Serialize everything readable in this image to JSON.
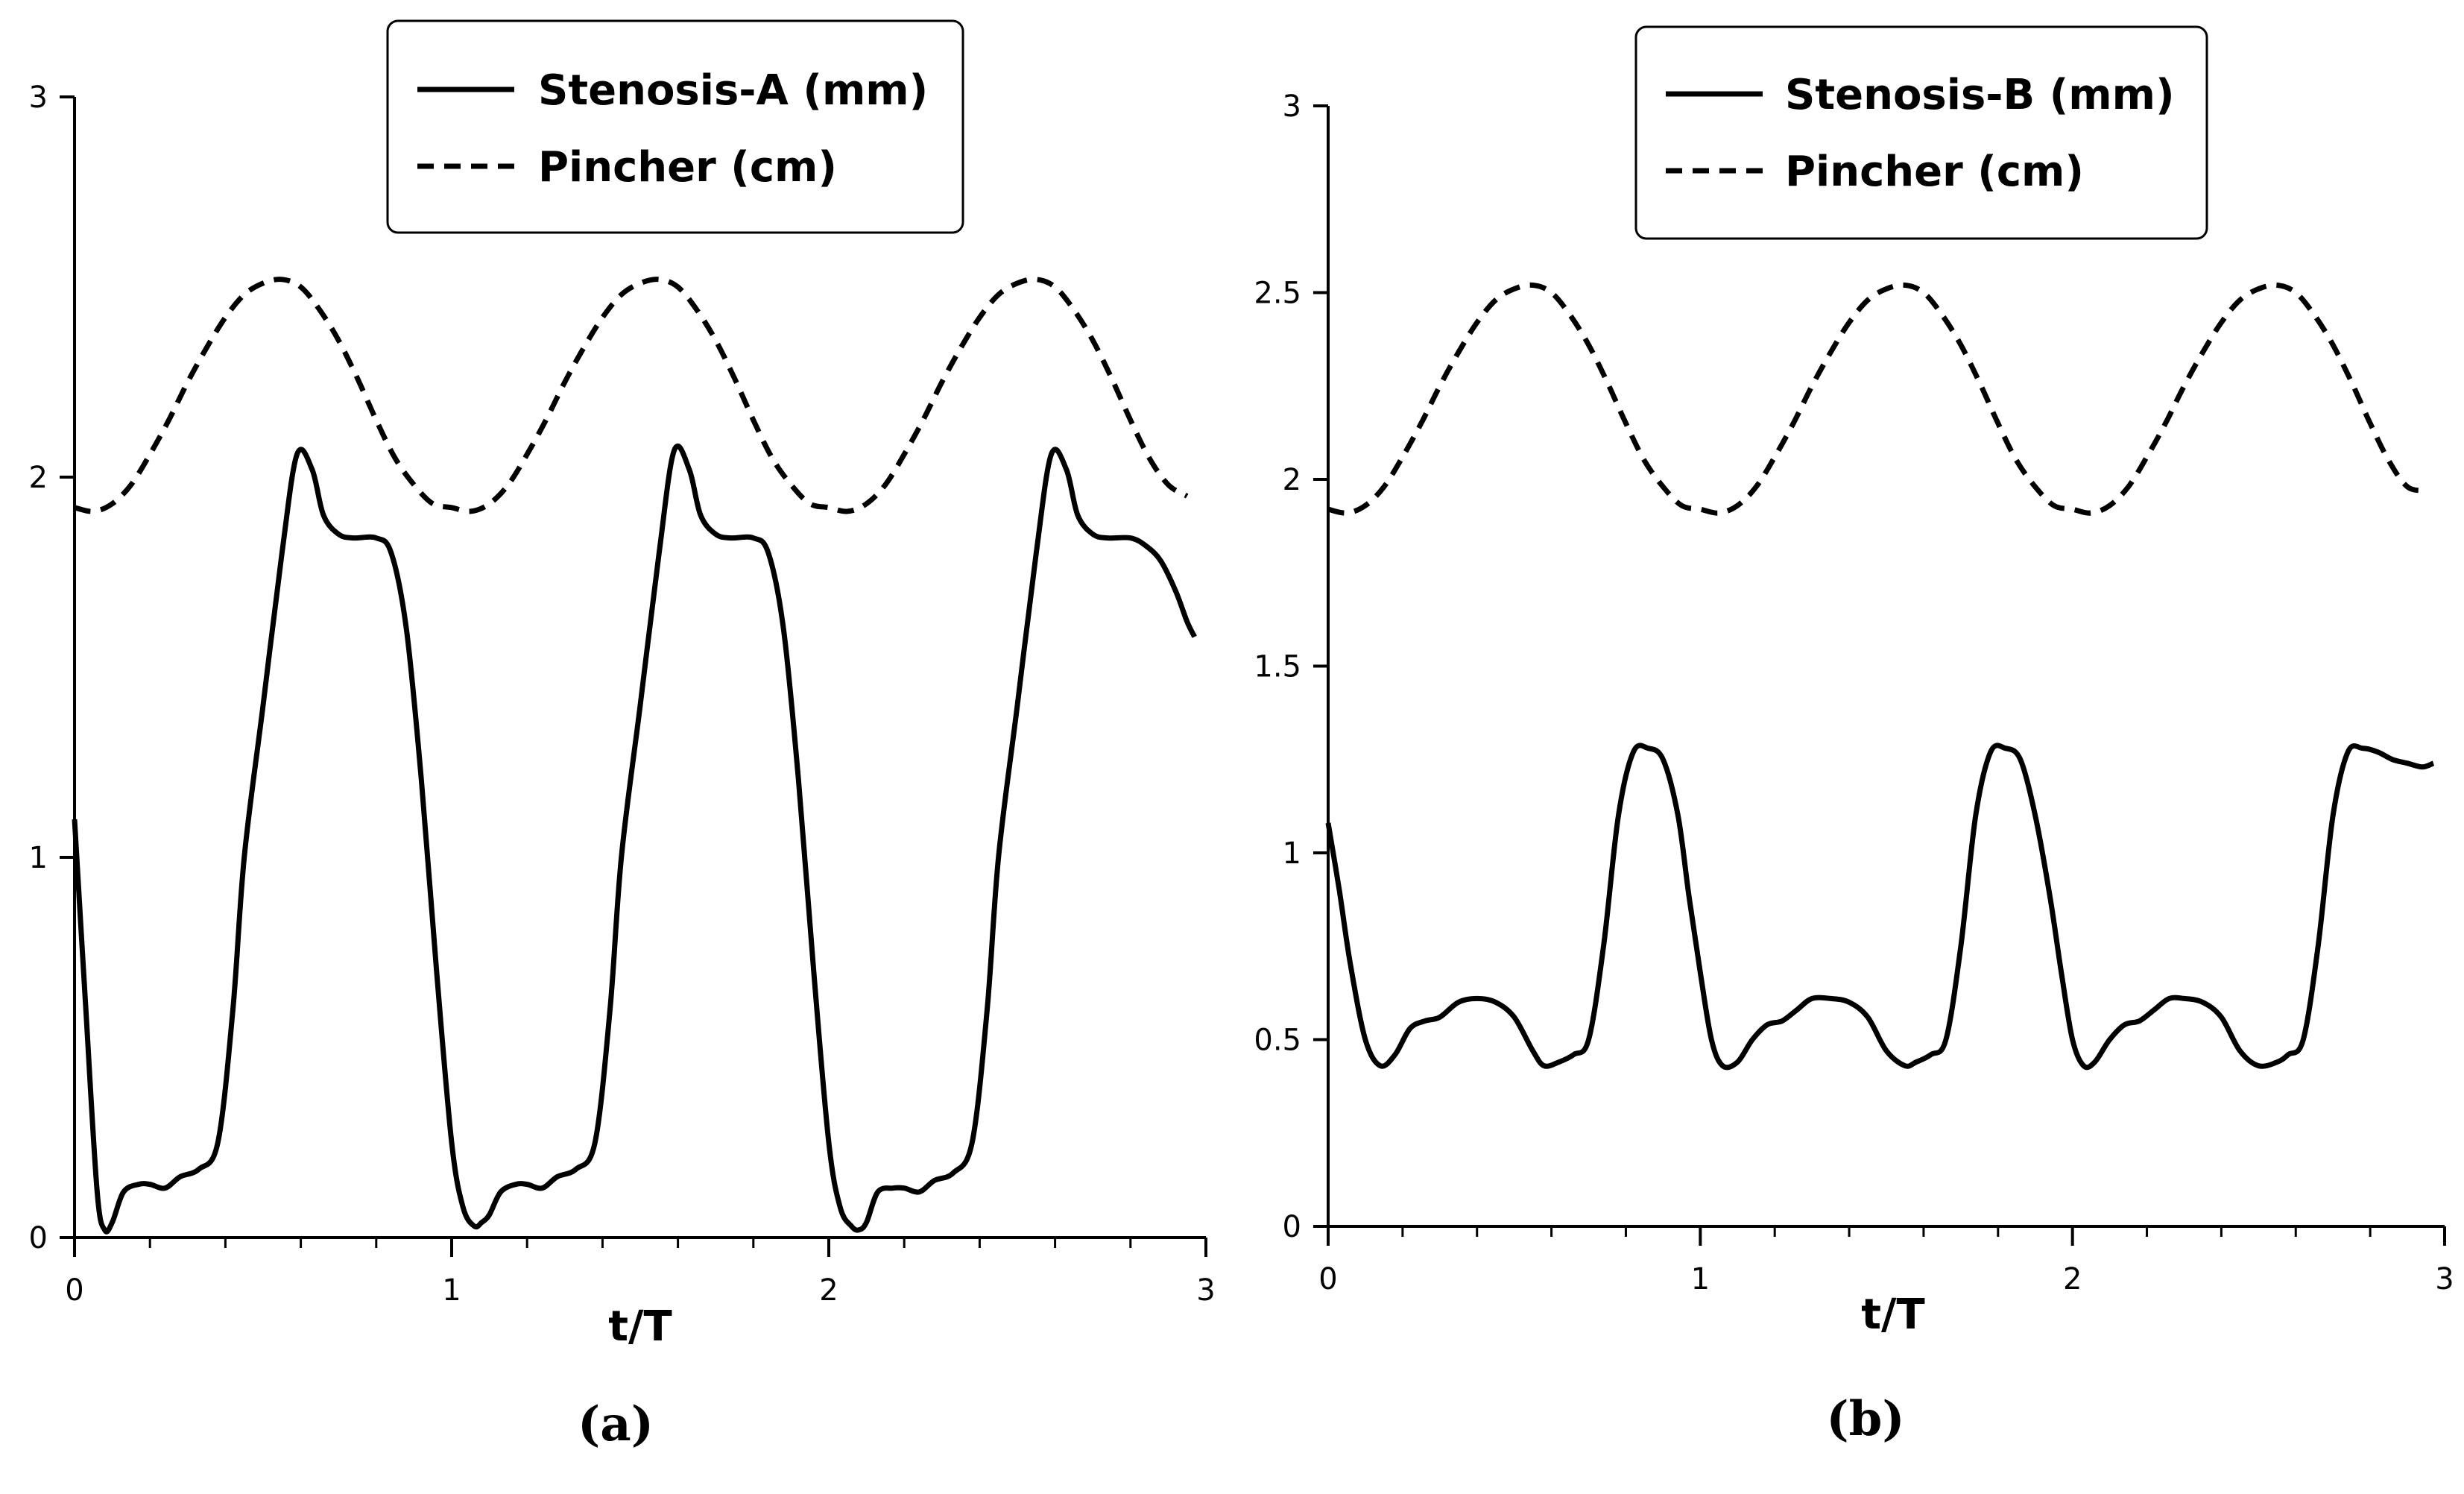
{
  "chart_data": [
    {
      "type": "line",
      "panel_label": "(a)",
      "xlabel": "t/T",
      "ylabel": "",
      "xlim": [
        0,
        3
      ],
      "ylim": [
        0,
        3
      ],
      "x_ticks": [
        "0",
        "1",
        "2",
        "3"
      ],
      "y_ticks": [
        "0",
        "1",
        "2",
        "3"
      ],
      "legend_position": "top-center",
      "series": [
        {
          "name": "Stenosis-A (mm)",
          "style": "solid",
          "x": [
            0,
            0.03,
            0.06,
            0.08,
            0.1,
            0.13,
            0.17,
            0.2,
            0.24,
            0.28,
            0.33,
            0.38,
            0.42,
            0.45,
            0.5,
            0.55,
            0.59,
            0.63,
            0.66,
            0.7,
            0.74,
            0.8,
            0.84,
            0.88,
            0.92,
            0.96,
            1.0,
            1.03,
            1.06,
            1.08,
            1.1,
            1.13,
            1.17,
            1.2,
            1.24,
            1.28,
            1.33,
            1.38,
            1.42,
            1.45,
            1.5,
            1.55,
            1.59,
            1.63,
            1.66,
            1.7,
            1.74,
            1.8,
            1.84,
            1.88,
            1.92,
            1.96,
            2.0,
            2.03,
            2.06,
            2.08,
            2.1,
            2.13,
            2.17,
            2.2,
            2.24,
            2.28,
            2.33,
            2.38,
            2.42,
            2.45,
            2.5,
            2.55,
            2.59,
            2.63,
            2.66,
            2.7,
            2.74,
            2.8,
            2.84,
            2.88,
            2.92,
            2.95,
            2.97
          ],
          "y": [
            1.1,
            0.6,
            0.12,
            0.02,
            0.04,
            0.12,
            0.14,
            0.14,
            0.13,
            0.16,
            0.18,
            0.25,
            0.6,
            1.0,
            1.4,
            1.8,
            2.06,
            2.02,
            1.9,
            1.85,
            1.84,
            1.84,
            1.8,
            1.6,
            1.2,
            0.7,
            0.25,
            0.08,
            0.03,
            0.04,
            0.06,
            0.12,
            0.14,
            0.14,
            0.13,
            0.16,
            0.18,
            0.25,
            0.6,
            1.0,
            1.4,
            1.8,
            2.07,
            2.02,
            1.9,
            1.85,
            1.84,
            1.84,
            1.8,
            1.6,
            1.2,
            0.7,
            0.25,
            0.08,
            0.03,
            0.02,
            0.04,
            0.12,
            0.13,
            0.13,
            0.12,
            0.15,
            0.17,
            0.25,
            0.6,
            1.0,
            1.4,
            1.8,
            2.06,
            2.02,
            1.9,
            1.85,
            1.84,
            1.84,
            1.82,
            1.78,
            1.7,
            1.62,
            1.58
          ]
        },
        {
          "name": "Pincher (cm)",
          "style": "dashed",
          "x": [
            0,
            0.05,
            0.1,
            0.15,
            0.2,
            0.25,
            0.3,
            0.35,
            0.4,
            0.45,
            0.5,
            0.55,
            0.6,
            0.65,
            0.7,
            0.75,
            0.8,
            0.85,
            0.9,
            0.95,
            1.0,
            1.05,
            1.1,
            1.15,
            1.2,
            1.25,
            1.3,
            1.35,
            1.4,
            1.45,
            1.5,
            1.55,
            1.6,
            1.65,
            1.7,
            1.75,
            1.8,
            1.85,
            1.9,
            1.95,
            2.0,
            2.05,
            2.1,
            2.15,
            2.2,
            2.25,
            2.3,
            2.35,
            2.4,
            2.45,
            2.5,
            2.55,
            2.6,
            2.65,
            2.7,
            2.75,
            2.8,
            2.85,
            2.9,
            2.95
          ],
          "y": [
            1.92,
            1.91,
            1.93,
            1.98,
            2.06,
            2.15,
            2.25,
            2.34,
            2.42,
            2.48,
            2.51,
            2.52,
            2.5,
            2.44,
            2.36,
            2.26,
            2.15,
            2.05,
            1.98,
            1.93,
            1.92,
            1.91,
            1.93,
            1.98,
            2.06,
            2.15,
            2.25,
            2.34,
            2.42,
            2.48,
            2.51,
            2.52,
            2.5,
            2.44,
            2.36,
            2.26,
            2.15,
            2.05,
            1.98,
            1.93,
            1.92,
            1.91,
            1.93,
            1.98,
            2.06,
            2.15,
            2.25,
            2.34,
            2.42,
            2.48,
            2.51,
            2.52,
            2.5,
            2.44,
            2.36,
            2.26,
            2.15,
            2.05,
            1.98,
            1.95
          ]
        }
      ]
    },
    {
      "type": "line",
      "panel_label": "(b)",
      "xlabel": "t/T",
      "ylabel": "",
      "xlim": [
        0,
        3
      ],
      "ylim": [
        0,
        3
      ],
      "x_ticks": [
        "0",
        "1",
        "2",
        "3"
      ],
      "y_ticks": [
        "0",
        "0.5",
        "1",
        "1.5",
        "2",
        "2.5",
        "3"
      ],
      "legend_position": "top-center",
      "series": [
        {
          "name": "Stenosis-B (mm)",
          "style": "solid",
          "x": [
            0,
            0.03,
            0.06,
            0.1,
            0.14,
            0.18,
            0.22,
            0.26,
            0.3,
            0.35,
            0.4,
            0.45,
            0.5,
            0.55,
            0.58,
            0.62,
            0.66,
            0.7,
            0.74,
            0.78,
            0.82,
            0.86,
            0.9,
            0.94,
            0.97,
            1.0,
            1.03,
            1.06,
            1.1,
            1.14,
            1.18,
            1.22,
            1.26,
            1.3,
            1.35,
            1.4,
            1.45,
            1.5,
            1.55,
            1.58,
            1.62,
            1.66,
            1.7,
            1.74,
            1.78,
            1.82,
            1.86,
            1.9,
            1.94,
            1.97,
            2.0,
            2.03,
            2.06,
            2.1,
            2.14,
            2.18,
            2.22,
            2.26,
            2.3,
            2.35,
            2.4,
            2.45,
            2.5,
            2.55,
            2.58,
            2.62,
            2.66,
            2.7,
            2.74,
            2.78,
            2.82,
            2.86,
            2.9,
            2.94,
            2.97
          ],
          "y": [
            1.08,
            0.9,
            0.7,
            0.5,
            0.43,
            0.46,
            0.53,
            0.55,
            0.56,
            0.6,
            0.61,
            0.6,
            0.56,
            0.47,
            0.43,
            0.44,
            0.46,
            0.5,
            0.75,
            1.1,
            1.27,
            1.28,
            1.25,
            1.1,
            0.88,
            0.68,
            0.5,
            0.43,
            0.44,
            0.5,
            0.54,
            0.55,
            0.58,
            0.61,
            0.61,
            0.6,
            0.56,
            0.47,
            0.43,
            0.44,
            0.46,
            0.5,
            0.75,
            1.1,
            1.27,
            1.28,
            1.25,
            1.1,
            0.88,
            0.68,
            0.5,
            0.43,
            0.44,
            0.5,
            0.54,
            0.55,
            0.58,
            0.61,
            0.61,
            0.6,
            0.56,
            0.47,
            0.43,
            0.44,
            0.46,
            0.5,
            0.75,
            1.1,
            1.27,
            1.28,
            1.27,
            1.25,
            1.24,
            1.23,
            1.24
          ]
        },
        {
          "name": "Pincher (cm)",
          "style": "dashed",
          "x": [
            0,
            0.05,
            0.1,
            0.15,
            0.2,
            0.25,
            0.3,
            0.35,
            0.4,
            0.45,
            0.5,
            0.55,
            0.6,
            0.65,
            0.7,
            0.75,
            0.8,
            0.85,
            0.9,
            0.95,
            1.0,
            1.05,
            1.1,
            1.15,
            1.2,
            1.25,
            1.3,
            1.35,
            1.4,
            1.45,
            1.5,
            1.55,
            1.6,
            1.65,
            1.7,
            1.75,
            1.8,
            1.85,
            1.9,
            1.95,
            2.0,
            2.05,
            2.1,
            2.15,
            2.2,
            2.25,
            2.3,
            2.35,
            2.4,
            2.45,
            2.5,
            2.55,
            2.6,
            2.65,
            2.7,
            2.75,
            2.8,
            2.85,
            2.9,
            2.95
          ],
          "y": [
            1.92,
            1.91,
            1.93,
            1.98,
            2.06,
            2.15,
            2.25,
            2.34,
            2.42,
            2.48,
            2.51,
            2.52,
            2.5,
            2.44,
            2.36,
            2.26,
            2.15,
            2.05,
            1.98,
            1.93,
            1.92,
            1.91,
            1.93,
            1.98,
            2.06,
            2.15,
            2.25,
            2.34,
            2.42,
            2.48,
            2.51,
            2.52,
            2.5,
            2.44,
            2.36,
            2.26,
            2.15,
            2.05,
            1.98,
            1.93,
            1.92,
            1.91,
            1.93,
            1.98,
            2.06,
            2.15,
            2.25,
            2.34,
            2.42,
            2.48,
            2.51,
            2.52,
            2.5,
            2.44,
            2.36,
            2.26,
            2.15,
            2.05,
            1.98,
            1.97
          ]
        }
      ]
    }
  ]
}
